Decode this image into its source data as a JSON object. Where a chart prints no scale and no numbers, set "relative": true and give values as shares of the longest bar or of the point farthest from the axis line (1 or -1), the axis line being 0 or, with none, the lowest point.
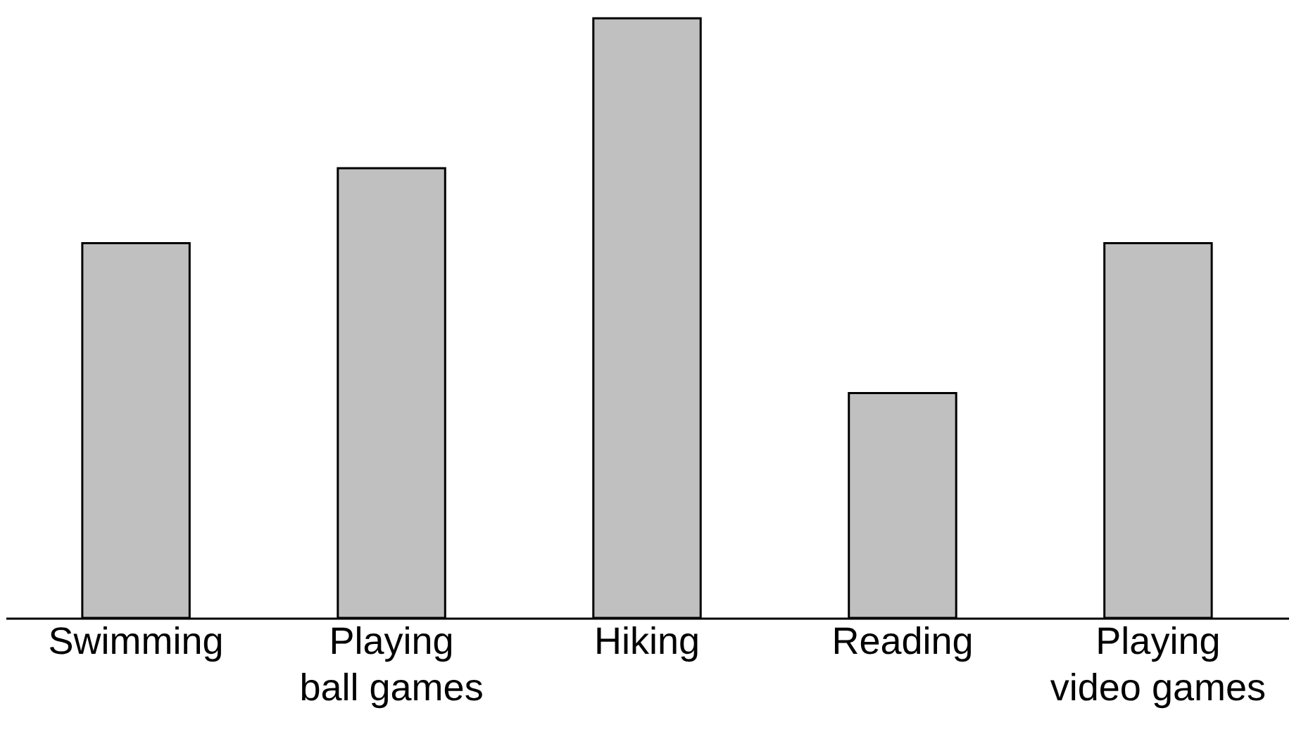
{
  "chart_data": {
    "type": "bar",
    "relative": true,
    "categories": [
      "Swimming",
      "Playing ball games",
      "Hiking",
      "Reading",
      "Playing video games"
    ],
    "values": [
      0.625,
      0.75,
      1,
      0.375,
      0.625
    ],
    "color": "#c0c0c0",
    "grid": false
  }
}
